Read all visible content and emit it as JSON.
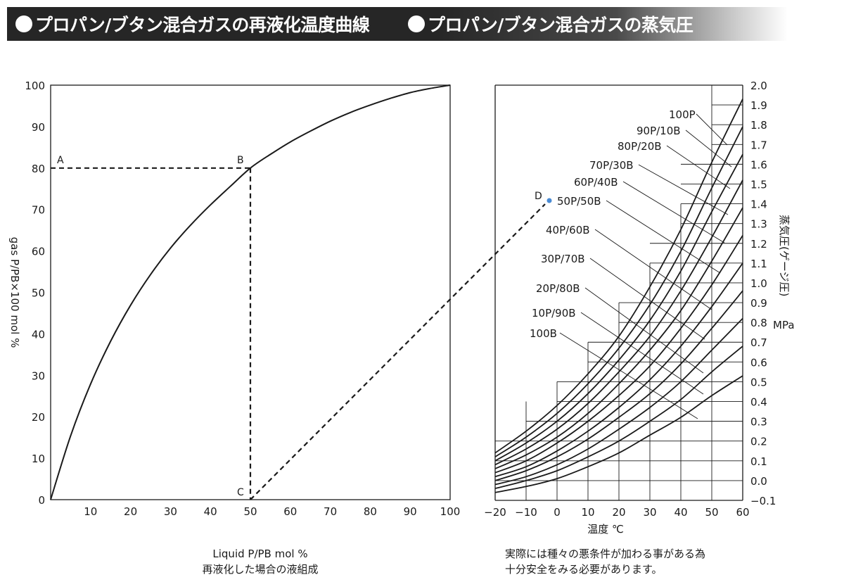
{
  "header": {
    "left_title": "プロパン/ブタン混合ガスの再液化温度曲線",
    "right_title": "プロパン/ブタン混合ガスの蒸気圧"
  },
  "left_caption": {
    "line1": "Liquid P/PB mol %",
    "line2": "再液化した場合の液組成"
  },
  "right_caption": {
    "line1": "実際には種々の悪条件が加わる事がある為",
    "line2": "十分安全をみる必要があります。"
  },
  "chart_data": [
    {
      "type": "line",
      "xlabel": "Liquid P/PB mol %",
      "ylabel": "gas  P/PB×100  mol %",
      "xlim": [
        0,
        100
      ],
      "ylim": [
        0,
        100
      ],
      "x_ticks": [
        "10",
        "20",
        "30",
        "40",
        "50",
        "60",
        "70",
        "80",
        "90",
        "100"
      ],
      "y_ticks": [
        "0",
        "10",
        "20",
        "30",
        "40",
        "50",
        "60",
        "70",
        "80",
        "90",
        "100"
      ],
      "series": [
        {
          "x": [
            0,
            5,
            10,
            15,
            20,
            25,
            30,
            35,
            40,
            45,
            50,
            55,
            60,
            65,
            70,
            75,
            80,
            85,
            90,
            95,
            100
          ],
          "values": [
            0,
            15.4,
            27.9,
            38.2,
            46.9,
            54.3,
            60.7,
            66.2,
            71.1,
            75.6,
            80,
            83.3,
            86.3,
            88.9,
            91.3,
            93.4,
            95.2,
            96.8,
            98.2,
            99.2,
            100
          ]
        }
      ],
      "points": [
        {
          "label": "A",
          "x": 0,
          "y": 80
        },
        {
          "label": "B",
          "x": 50,
          "y": 80
        },
        {
          "label": "C",
          "x": 50,
          "y": 0
        }
      ],
      "grid": false
    },
    {
      "type": "line",
      "xlabel": "温度 ℃",
      "ylabel": "蒸気圧(ゲージ圧)",
      "yunit": "MPa",
      "xlim": [
        -20,
        60
      ],
      "ylim": [
        -0.1,
        2.0
      ],
      "x_ticks": [
        "−20",
        "−10",
        "0",
        "10",
        "20",
        "30",
        "40",
        "50",
        "60"
      ],
      "y_ticks": [
        "−0.1",
        "0.0",
        "0.1",
        "0.2",
        "0.3",
        "0.4",
        "0.5",
        "0.6",
        "0.7",
        "0.8",
        "0.9",
        "1.0",
        "1.1",
        "1.2",
        "1.3",
        "1.4",
        "1.5",
        "1.6",
        "1.7",
        "1.8",
        "1.9",
        "2.0"
      ],
      "x": [
        -20,
        -10,
        0,
        10,
        20,
        30,
        40,
        50,
        60
      ],
      "series": [
        {
          "name": "100P",
          "values": [
            0.14,
            0.25,
            0.38,
            0.54,
            0.73,
            0.98,
            1.27,
            1.61,
            1.93
          ]
        },
        {
          "name": "90P/10B",
          "values": [
            0.12,
            0.22,
            0.34,
            0.49,
            0.67,
            0.89,
            1.16,
            1.48,
            1.79
          ]
        },
        {
          "name": "80P/20B",
          "values": [
            0.1,
            0.19,
            0.3,
            0.44,
            0.61,
            0.81,
            1.06,
            1.36,
            1.65
          ]
        },
        {
          "name": "70P/30B",
          "values": [
            0.08,
            0.16,
            0.26,
            0.39,
            0.55,
            0.73,
            0.96,
            1.23,
            1.52
          ]
        },
        {
          "name": "60P/40B",
          "values": [
            0.06,
            0.13,
            0.22,
            0.34,
            0.49,
            0.66,
            0.86,
            1.11,
            1.38
          ]
        },
        {
          "name": "50P/50B",
          "values": [
            0.04,
            0.1,
            0.19,
            0.3,
            0.43,
            0.58,
            0.77,
            0.99,
            1.24
          ]
        },
        {
          "name": "40P/60B",
          "values": [
            0.02,
            0.07,
            0.15,
            0.25,
            0.37,
            0.51,
            0.68,
            0.88,
            1.1
          ]
        },
        {
          "name": "30P/70B",
          "values": [
            0.0,
            0.05,
            0.12,
            0.21,
            0.32,
            0.44,
            0.59,
            0.77,
            0.96
          ]
        },
        {
          "name": "20P/80B",
          "values": [
            -0.02,
            0.02,
            0.08,
            0.16,
            0.26,
            0.37,
            0.5,
            0.66,
            0.82
          ]
        },
        {
          "name": "10P/90B",
          "values": [
            -0.04,
            0.0,
            0.05,
            0.12,
            0.2,
            0.3,
            0.41,
            0.55,
            0.68
          ]
        },
        {
          "name": "100B",
          "values": [
            -0.06,
            -0.03,
            0.01,
            0.07,
            0.14,
            0.23,
            0.32,
            0.43,
            0.53
          ]
        }
      ],
      "points": [
        {
          "label": "D"
        }
      ],
      "grid": true
    }
  ],
  "colors": {
    "header_bg": "#262626",
    "line": "#1a1a1a",
    "point_d": "#4a8bd4",
    "background": "#ffffff"
  }
}
